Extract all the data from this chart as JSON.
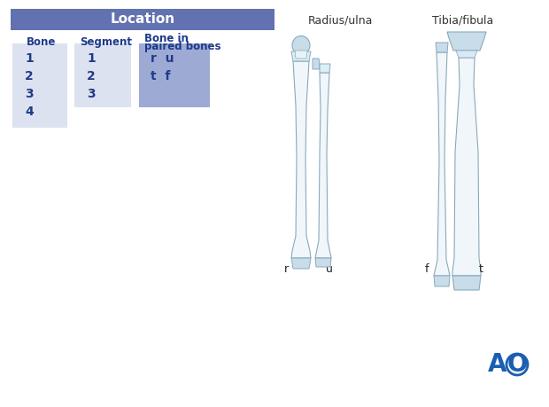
{
  "title": "Location",
  "title_bg_color": "#6272b0",
  "title_text_color": "#ffffff",
  "header_color": "#1e3a8a",
  "bone_bg": "#dde2f0",
  "segment_bg": "#dde2f0",
  "paired_bg": "#9daad4",
  "bone_values": [
    "1",
    "2",
    "3",
    "4"
  ],
  "segment_values": [
    "1",
    "2",
    "3"
  ],
  "paired_values": [
    "r  u",
    "t  f"
  ],
  "col_header_bone": "Bone",
  "col_header_segment": "Segment",
  "col_header_paired_1": "Bone in",
  "col_header_paired_2": "paired bones",
  "label_r": "r",
  "label_u": "u",
  "label_f": "f",
  "label_t": "t",
  "radius_ulna_title": "Radius/ulna",
  "tibia_fibula_title": "Tibia/fibula",
  "ao_color": "#1a5fb0",
  "bg_color": "#ffffff",
  "bone_edge": "#8aaabb",
  "bone_fill_light": "#f0f6fa",
  "bone_fill_epi": "#c8dcea",
  "bone_fill_mid": "#dceef6"
}
